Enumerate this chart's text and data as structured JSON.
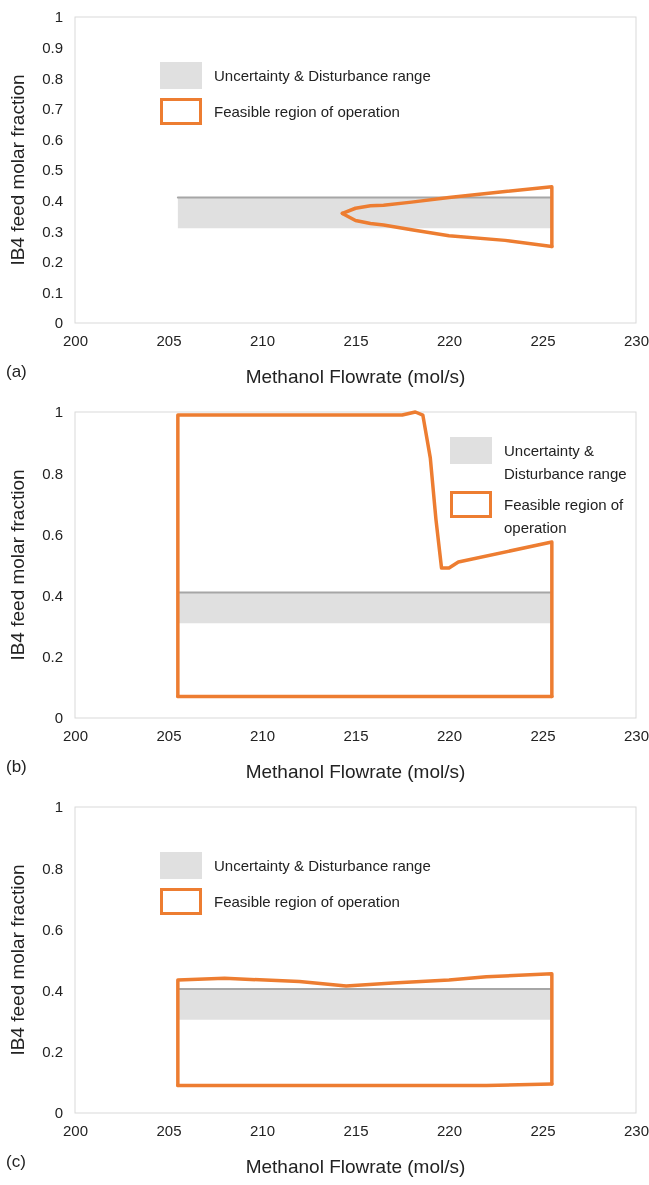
{
  "chart_data": [
    {
      "type": "line",
      "xlabel": "Methanol Flowrate (mol/s)",
      "ylabel": "IB4 feed molar fraction",
      "annotations": [
        "(a)"
      ],
      "xlim": [
        200,
        230
      ],
      "xticks": [
        200,
        205,
        210,
        215,
        220,
        225,
        230
      ],
      "ylim": [
        0,
        1
      ],
      "yticks": [
        0,
        0.1,
        0.2,
        0.3,
        0.4,
        0.5,
        0.6,
        0.7,
        0.8,
        0.9,
        1
      ],
      "grid": false,
      "legend": "top left",
      "series": [
        {
          "type": "line",
          "name": "Uncertainty & Disturbance range",
          "color": "#a6a6a6",
          "x": [
            205.5,
            225.5
          ],
          "values": [
            0.41,
            0.41
          ],
          "lower": [
            0.31,
            0.31
          ],
          "upper": [
            0.41,
            0.41
          ]
        },
        {
          "type": "line",
          "name": "Feasible region of operation",
          "color": "#ed7d31",
          "x": [
            214.3,
            215,
            215.8,
            216.5,
            218,
            220,
            223,
            225.5,
            225.5
          ],
          "values": [
            0.358,
            0.375,
            0.383,
            0.385,
            0.395,
            0.41,
            0.43,
            0.445,
            0.25
          ]
        },
        {
          "type": "line",
          "color": "#ed7d31",
          "x": [
            214.3,
            215,
            215.8,
            216.5,
            218,
            220,
            223,
            225.5
          ],
          "values": [
            0.358,
            0.335,
            0.325,
            0.32,
            0.305,
            0.285,
            0.27,
            0.25
          ]
        }
      ]
    },
    {
      "type": "line",
      "xlabel": "Methanol Flowrate (mol/s)",
      "ylabel": "IB4 feed molar fraction",
      "annotations": [
        "(b)"
      ],
      "xlim": [
        200,
        230
      ],
      "xticks": [
        200,
        205,
        210,
        215,
        220,
        225,
        230
      ],
      "ylim": [
        0,
        1
      ],
      "yticks": [
        0,
        0.2,
        0.4,
        0.6,
        0.8,
        1
      ],
      "grid": false,
      "legend": "top right",
      "series": [
        {
          "type": "line",
          "name": "Uncertainty & Disturbance range",
          "color": "#a6a6a6",
          "x": [
            205.5,
            225.5
          ],
          "values": [
            0.41,
            0.41
          ],
          "lower": [
            0.31,
            0.31
          ],
          "upper": [
            0.41,
            0.41
          ]
        },
        {
          "type": "line",
          "name": "Feasible region of operation",
          "color": "#ed7d31",
          "x": [
            205.5,
            205.5,
            217.5,
            218.2,
            218.6,
            219,
            219.3,
            219.6,
            220,
            220.5,
            225.5,
            225.5
          ],
          "values": [
            0.07,
            0.99,
            0.99,
            1.0,
            0.99,
            0.85,
            0.65,
            0.49,
            0.49,
            0.51,
            0.575,
            0.07
          ]
        },
        {
          "type": "line",
          "color": "#ed7d31",
          "x": [
            205.5,
            225.5
          ],
          "values": [
            0.07,
            0.07
          ]
        }
      ]
    },
    {
      "type": "line",
      "xlabel": "Methanol Flowrate (mol/s)",
      "ylabel": "IB4 feed molar fraction",
      "annotations": [
        "(c)"
      ],
      "xlim": [
        200,
        230
      ],
      "xticks": [
        200,
        205,
        210,
        215,
        220,
        225,
        230
      ],
      "ylim": [
        0,
        1
      ],
      "yticks": [
        0,
        0.2,
        0.4,
        0.6,
        0.8,
        1
      ],
      "grid": false,
      "legend": "top left",
      "series": [
        {
          "type": "line",
          "name": "Uncertainty & Disturbance range",
          "color": "#a6a6a6",
          "x": [
            205.5,
            225.5
          ],
          "values": [
            0.405,
            0.405
          ],
          "lower": [
            0.305,
            0.305
          ],
          "upper": [
            0.405,
            0.405
          ]
        },
        {
          "type": "line",
          "name": "Feasible region of operation",
          "color": "#ed7d31",
          "x": [
            205.5,
            205.5,
            208,
            212,
            214.5,
            217,
            220,
            222,
            225.5,
            225.5
          ],
          "values": [
            0.09,
            0.435,
            0.44,
            0.43,
            0.415,
            0.425,
            0.435,
            0.445,
            0.455,
            0.095
          ]
        },
        {
          "type": "line",
          "color": "#ed7d31",
          "x": [
            205.5,
            222,
            225.5
          ],
          "values": [
            0.09,
            0.09,
            0.095
          ]
        }
      ]
    }
  ]
}
